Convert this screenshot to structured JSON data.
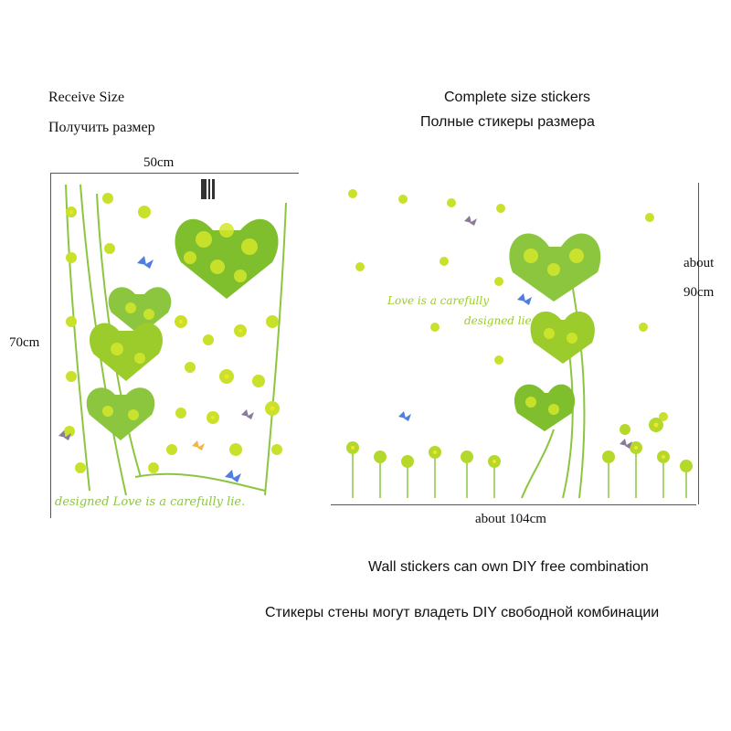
{
  "left": {
    "caption_en": "Receive Size",
    "caption_ru": "Получить размер",
    "width_label": "50cm",
    "height_label": "70cm",
    "sheet_text": "designed  Love is a carefully lie."
  },
  "right": {
    "caption_en": "Complete size stickers",
    "caption_ru": "Полные стикеры размера",
    "width_label": "about 104cm",
    "height_label_line1": "about",
    "height_label_line2": "90cm",
    "wall_text_line1": "Love is a carefully",
    "wall_text_line2": "designed lie."
  },
  "footer": {
    "line_en": "Wall stickers can own DIY free combination",
    "line_ru": "Стикеры стены могут владеть DIY свободной комбинации"
  },
  "colors": {
    "leaf_light": "#d4e82a",
    "leaf_mid": "#9ccc2c",
    "leaf_dark": "#4d9a1e",
    "stem": "#8cc63f",
    "flower_yellow": "#f2e32b",
    "butterfly_blue": "#4f7ee0"
  }
}
